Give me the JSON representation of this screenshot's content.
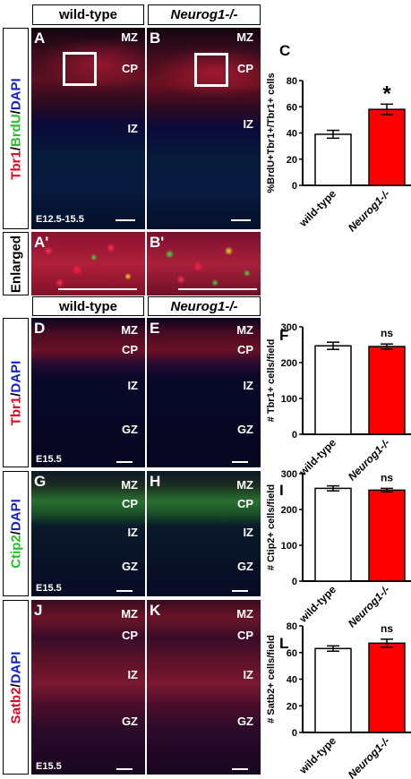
{
  "headers": {
    "wt": "wild-type",
    "ko": "Neurog1-/-"
  },
  "row_labels": {
    "tbr1_brdu": [
      "Tbr1",
      "/",
      "BrdU",
      "/",
      "DAPI"
    ],
    "enlarged": "Enlarged",
    "tbr1": [
      "Tbr1",
      "/",
      "DAPI"
    ],
    "ctip2": [
      "Ctip2",
      "/",
      "DAPI"
    ],
    "satb2": [
      "Satb2",
      "/",
      "DAPI"
    ]
  },
  "label_colors": {
    "tbr1": "#e8001c",
    "brdu": "#22c022",
    "dapi": "#1020d0",
    "ctip2": "#22c022",
    "satb2": "#e8001c"
  },
  "panels": {
    "A": "A",
    "B": "B",
    "A2": "A'",
    "B2": "B'",
    "C": "C",
    "D": "D",
    "E": "E",
    "F": "F",
    "G": "G",
    "H": "H",
    "I": "I",
    "J": "J",
    "K": "K",
    "L": "L"
  },
  "zones": {
    "MZ": "MZ",
    "CP": "CP",
    "IZ": "IZ",
    "GZ": "GZ"
  },
  "ages": {
    "top": "E12.5-15.5",
    "e155": "E15.5"
  },
  "bar_colors": {
    "wt": "#ffffff",
    "ko": "#ff0000"
  },
  "chart_data": [
    {
      "type": "bar",
      "panel": "C",
      "categories": [
        "wild-type",
        "Neurog1-/-"
      ],
      "values": [
        39,
        58
      ],
      "errors": [
        3,
        4
      ],
      "ylabel": "%BrdU+Tbr1+/Tbr1+ cells",
      "ylim": [
        0,
        80
      ],
      "yticks": [
        0,
        20,
        40,
        60,
        80
      ],
      "significance": "*"
    },
    {
      "type": "bar",
      "panel": "F",
      "categories": [
        "wild-type",
        "Neurog1-/-"
      ],
      "values": [
        247,
        245
      ],
      "errors": [
        10,
        7
      ],
      "ylabel": "# Tbr1+ cells/field",
      "ylim": [
        0,
        300
      ],
      "yticks": [
        0,
        100,
        200,
        300
      ],
      "significance": "ns"
    },
    {
      "type": "bar",
      "panel": "I",
      "categories": [
        "wild-type",
        "Neurog1-/-"
      ],
      "values": [
        259,
        254
      ],
      "errors": [
        7,
        5
      ],
      "ylabel": "# Ctip2+ cells/field",
      "ylim": [
        0,
        300
      ],
      "yticks": [
        0,
        100,
        200,
        300
      ],
      "significance": "ns"
    },
    {
      "type": "bar",
      "panel": "L",
      "categories": [
        "wild-type",
        "Neurog1-/-"
      ],
      "values": [
        63,
        67
      ],
      "errors": [
        2,
        3
      ],
      "ylabel": "# Satb2+ cells/field",
      "ylim": [
        0,
        80
      ],
      "yticks": [
        0,
        20,
        40,
        60,
        80
      ],
      "significance": "ns"
    }
  ]
}
